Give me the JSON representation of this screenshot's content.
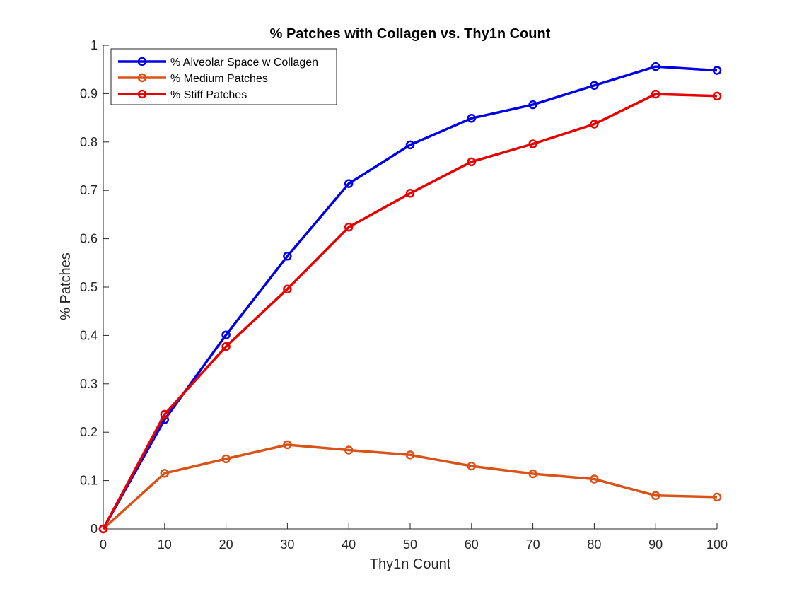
{
  "chart_data": {
    "type": "line",
    "title": "% Patches with Collagen vs. Thy1n Count",
    "xlabel": "Thy1n Count",
    "ylabel": "% Patches",
    "xlim": [
      0,
      100
    ],
    "ylim": [
      0,
      1
    ],
    "xticks": [
      "0",
      "10",
      "20",
      "30",
      "40",
      "50",
      "60",
      "70",
      "80",
      "90",
      "100"
    ],
    "yticks": [
      "0",
      "0.1",
      "0.2",
      "0.3",
      "0.4",
      "0.5",
      "0.6",
      "0.7",
      "0.8",
      "0.9",
      "1"
    ],
    "xticks_values": [
      0,
      10,
      20,
      30,
      40,
      50,
      60,
      70,
      80,
      90,
      100
    ],
    "yticks_values": [
      0,
      0.1,
      0.2,
      0.3,
      0.4,
      0.5,
      0.6,
      0.7,
      0.8,
      0.9,
      1
    ],
    "x": [
      0,
      10,
      20,
      30,
      40,
      50,
      60,
      70,
      80,
      90,
      100
    ],
    "grid": false,
    "legend_position": "top-left",
    "series": [
      {
        "name": "% Alveolar Space w Collagen",
        "color": "#0000e6",
        "marker": "circle",
        "values": [
          0.0,
          0.226,
          0.401,
          0.564,
          0.714,
          0.794,
          0.849,
          0.877,
          0.917,
          0.956,
          0.948
        ]
      },
      {
        "name": "% Medium Patches",
        "color": "#d95319",
        "marker": "circle",
        "values": [
          0.0,
          0.115,
          0.145,
          0.174,
          0.163,
          0.153,
          0.13,
          0.114,
          0.103,
          0.069,
          0.066
        ]
      },
      {
        "name": "% Stiff Patches",
        "color": "#e60000",
        "marker": "circle",
        "values": [
          0.0,
          0.237,
          0.377,
          0.496,
          0.624,
          0.694,
          0.759,
          0.796,
          0.837,
          0.899,
          0.895
        ]
      }
    ]
  }
}
